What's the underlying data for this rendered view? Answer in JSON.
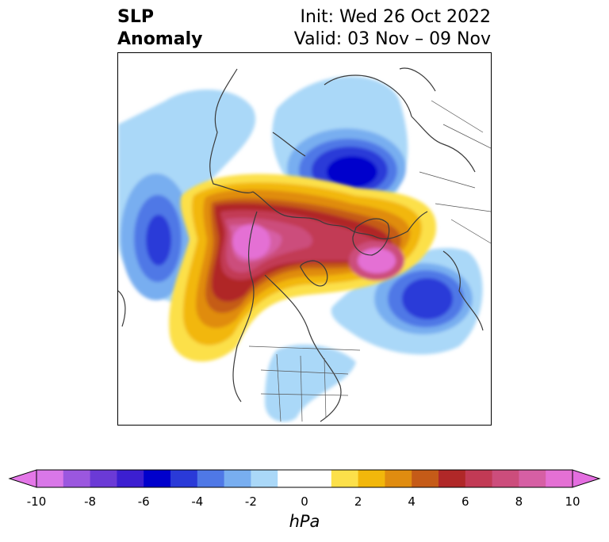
{
  "header": {
    "title_line1": "SLP",
    "title_line2": "Anomaly",
    "init": "Init: Wed 26 Oct 2022",
    "valid": "Valid: 03 Nov – 09 Nov"
  },
  "map": {
    "variable": "SLP Anomaly",
    "features": [
      "coastlines",
      "country-borders",
      "us-state-borders"
    ],
    "anomaly_centers": [
      {
        "name": "negative-center-north-pacific",
        "sign": "negative",
        "approx_min_hpa": -7
      },
      {
        "name": "negative-center-siberia",
        "sign": "negative",
        "approx_min_hpa": -7
      },
      {
        "name": "negative-center-north-atlantic",
        "sign": "negative",
        "approx_min_hpa": -7
      },
      {
        "name": "positive-center-alaska-arctic",
        "sign": "positive",
        "approx_max_hpa": 10
      },
      {
        "name": "positive-center-greenland",
        "sign": "positive",
        "approx_max_hpa": 9
      }
    ]
  },
  "colorbar": {
    "unit": "hPa",
    "ticks": [
      "-10",
      "-8",
      "-6",
      "-4",
      "-2",
      "0",
      "2",
      "4",
      "6",
      "8",
      "10"
    ],
    "extend": "both",
    "colors": [
      "#d977e8",
      "#9b57df",
      "#6b3ad6",
      "#3c1fd1",
      "#0000cc",
      "#2a3ad8",
      "#4f78e6",
      "#78aef0",
      "#aad8f8",
      "#ffffff",
      "#ffffff",
      "#fce04a",
      "#f2b70b",
      "#e08c10",
      "#c55b18",
      "#b02828",
      "#c23a55",
      "#cc4d7c",
      "#d65fa4",
      "#e470d4"
    ],
    "under_color": "#e477e8",
    "over_color": "#e46ee0"
  }
}
